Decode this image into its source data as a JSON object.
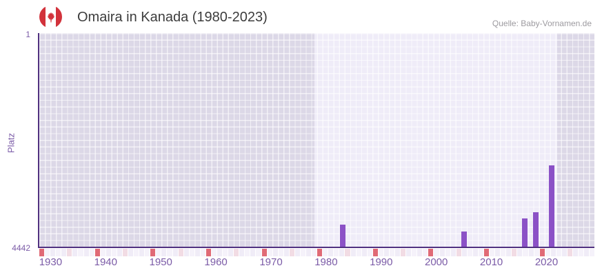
{
  "header": {
    "title": "Omaira in Kanada (1980-2023)",
    "source": "Quelle: Baby-Vornamen.de",
    "flag_icon": "canada-flag-icon"
  },
  "colors": {
    "bar": "#8b51c6",
    "axis_line": "#503180",
    "tick_text": "#7b5ba7",
    "plot_dim": "#dcd8e7",
    "plot_highlight": "#efecf8",
    "strip_red": "#e06a76",
    "strip_pink": "#f2dce4",
    "flag_red": "#d2323b",
    "title_text": "#3c3c3c",
    "source_text": "#9c9a9f"
  },
  "chart_data": {
    "type": "bar",
    "title": "Omaira in Kanada (1980-2023)",
    "xlabel": "",
    "ylabel": "Platz",
    "y_axis_inverted": true,
    "ylim": [
      1,
      4442
    ],
    "y_ticks": [
      "1",
      "4442"
    ],
    "x_ticks": [
      1930,
      1940,
      1950,
      1960,
      1970,
      1980,
      1990,
      2000,
      2010,
      2020
    ],
    "x_range": [
      1928,
      2028
    ],
    "highlight_year_range": [
      1978,
      2022
    ],
    "grid": true,
    "legend": false,
    "series": [
      {
        "name": "Platz",
        "points": [
          {
            "year": 1983,
            "platz": 3985
          },
          {
            "year": 2005,
            "platz": 4130
          },
          {
            "year": 2016,
            "platz": 3855
          },
          {
            "year": 2018,
            "platz": 3725
          },
          {
            "year": 2021,
            "platz": 2750
          }
        ]
      }
    ],
    "bottom_strip": {
      "cells": 100,
      "red_every": 10,
      "pink_offset": 5,
      "description": "decorative year strip: red cell each decade, pink cell mid-decade"
    }
  }
}
